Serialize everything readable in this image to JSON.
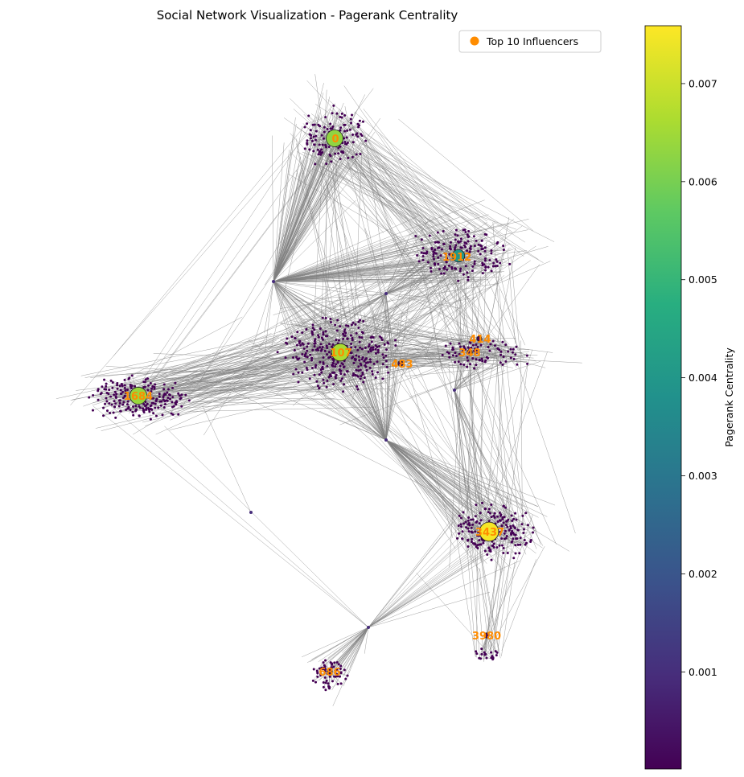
{
  "title": "Social Network Visualization - Pagerank Centrality",
  "legend": {
    "label": "Top 10 Influencers",
    "marker_color": "#ff8c00"
  },
  "colorbar": {
    "label": "Pagerank Centrality",
    "colormap": "viridis",
    "range": [
      1e-05,
      0.00759
    ],
    "ticks": [
      "0.001",
      "0.002",
      "0.003",
      "0.004",
      "0.005",
      "0.006",
      "0.007"
    ]
  },
  "network": {
    "edge_color": "#808080",
    "clusters": [
      {
        "id": "0",
        "size": "large"
      },
      {
        "id": "1912",
        "size": "large"
      },
      {
        "id": "107",
        "size": "very-large"
      },
      {
        "id": "1684",
        "size": "large"
      },
      {
        "id": "3437",
        "size": "large"
      },
      {
        "id": "686",
        "size": "small"
      },
      {
        "id": "3980",
        "size": "small"
      },
      {
        "id": "414",
        "size": "small"
      }
    ],
    "influencers": [
      {
        "label": "0",
        "pagerank": 0.0063
      },
      {
        "label": "1912",
        "pagerank": 0.004
      },
      {
        "label": "107",
        "pagerank": 0.0066
      },
      {
        "label": "1684",
        "pagerank": 0.0064
      },
      {
        "label": "3437",
        "pagerank": 0.0075
      },
      {
        "label": "483",
        "pagerank": 0.0003
      },
      {
        "label": "348",
        "pagerank": 0.0003
      },
      {
        "label": "414",
        "pagerank": 0.0002
      },
      {
        "label": "686",
        "pagerank": 0.0002
      },
      {
        "label": "3980",
        "pagerank": 0.0002
      }
    ]
  }
}
